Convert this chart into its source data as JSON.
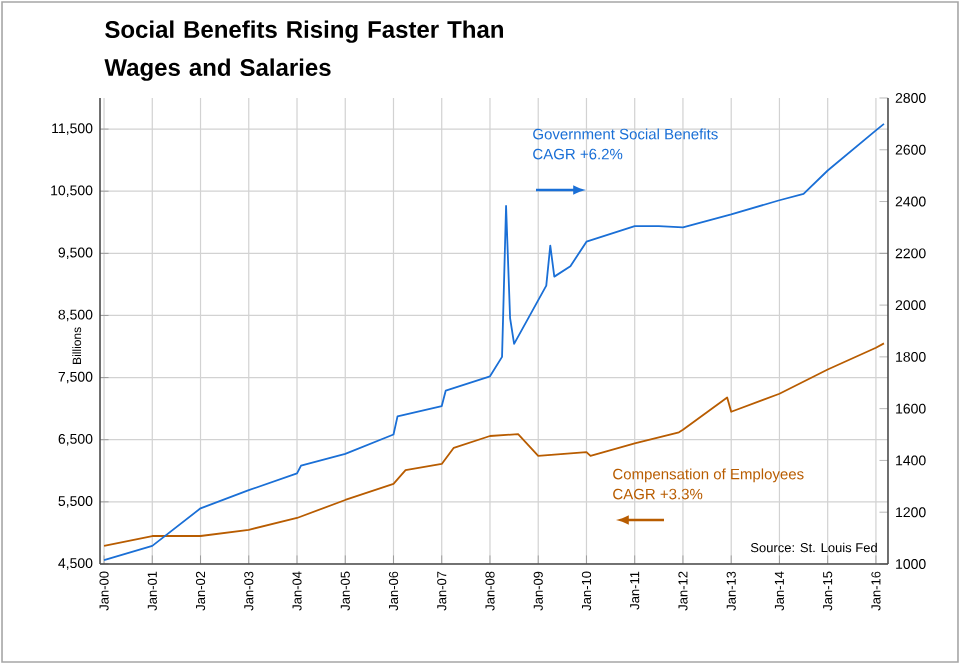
{
  "chart_data": {
    "type": "line",
    "title": "Social Benefits Rising Faster Than Wages and Salaries",
    "ylabel": "Billions",
    "xlim": [
      "1999-12",
      "2016-04"
    ],
    "xticks": [
      {
        "value": "2000-01",
        "label": "Jan-00"
      },
      {
        "value": "2001-01",
        "label": "Jan-01"
      },
      {
        "value": "2002-01",
        "label": "Jan-02"
      },
      {
        "value": "2003-01",
        "label": "Jan-03"
      },
      {
        "value": "2004-01",
        "label": "Jan-04"
      },
      {
        "value": "2005-01",
        "label": "Jan-05"
      },
      {
        "value": "2006-01",
        "label": "Jan-06"
      },
      {
        "value": "2007-01",
        "label": "Jan-07"
      },
      {
        "value": "2008-01",
        "label": "Jan-08"
      },
      {
        "value": "2009-01",
        "label": "Jan-09"
      },
      {
        "value": "2010-01",
        "label": "Jan-10"
      },
      {
        "value": "2011-01",
        "label": "Jan-11"
      },
      {
        "value": "2012-01",
        "label": "Jan-12"
      },
      {
        "value": "2013-01",
        "label": "Jan-13"
      },
      {
        "value": "2014-01",
        "label": "Jan-14"
      },
      {
        "value": "2015-01",
        "label": "Jan-15"
      },
      {
        "value": "2016-01",
        "label": "Jan-16"
      }
    ],
    "ylim": [
      4500,
      12000
    ],
    "yticks": [
      {
        "value": 4500,
        "label": "4,500"
      },
      {
        "value": 5500,
        "label": "5,500"
      },
      {
        "value": 6500,
        "label": "6,500"
      },
      {
        "value": 7500,
        "label": "7,500"
      },
      {
        "value": 8500,
        "label": "8,500"
      },
      {
        "value": 9500,
        "label": "9,500"
      },
      {
        "value": 10500,
        "label": "10,500"
      },
      {
        "value": 11500,
        "label": "11,500"
      }
    ],
    "y2lim": [
      1000,
      2800
    ],
    "y2ticks": [
      1000,
      1200,
      1400,
      1600,
      1800,
      2000,
      2200,
      2400,
      2600,
      2800
    ],
    "grid": true,
    "series": [
      {
        "name": "Government Social Benefits",
        "color": "#1a6fd6",
        "axis": "y2",
        "x": [
          "2000-01",
          "2001-01",
          "2002-01",
          "2003-01",
          "2004-01",
          "2004-02",
          "2005-01",
          "2006-01",
          "2006-02",
          "2007-01",
          "2007-02",
          "2008-01",
          "2008-04",
          "2008-05",
          "2008-06",
          "2008-07",
          "2009-03",
          "2009-04",
          "2009-05",
          "2009-09",
          "2010-01",
          "2011-01",
          "2011-07",
          "2012-01",
          "2013-01",
          "2014-01",
          "2014-07",
          "2015-01",
          "2016-01",
          "2016-03"
        ],
        "values": [
          1015,
          1070,
          1215,
          1285,
          1350,
          1380,
          1425,
          1500,
          1570,
          1610,
          1670,
          1725,
          1800,
          2383,
          1950,
          1850,
          2075,
          2230,
          2110,
          2150,
          2245,
          2305,
          2305,
          2300,
          2350,
          2405,
          2430,
          2520,
          2675,
          2700
        ]
      },
      {
        "name": "Compensation of Employees",
        "color": "#b85c00",
        "x": [
          "2000-01",
          "2001-01",
          "2002-01",
          "2003-01",
          "2004-01",
          "2005-01",
          "2006-01",
          "2006-04",
          "2007-01",
          "2007-04",
          "2008-01",
          "2008-08",
          "2009-01",
          "2010-01",
          "2010-02",
          "2011-01",
          "2011-12",
          "2012-01",
          "2012-12",
          "2013-01",
          "2014-01",
          "2015-01",
          "2016-01",
          "2016-03"
        ],
        "values": [
          4790,
          4950,
          4950,
          5050,
          5240,
          5530,
          5790,
          6010,
          6110,
          6370,
          6560,
          6590,
          6240,
          6300,
          6240,
          6440,
          6620,
          6660,
          7180,
          6950,
          7240,
          7630,
          7980,
          8050
        ]
      }
    ],
    "annotations": [
      "CAGR +6.2%",
      "CAGR +3.3%",
      "Source: St. Louis Fed"
    ]
  }
}
